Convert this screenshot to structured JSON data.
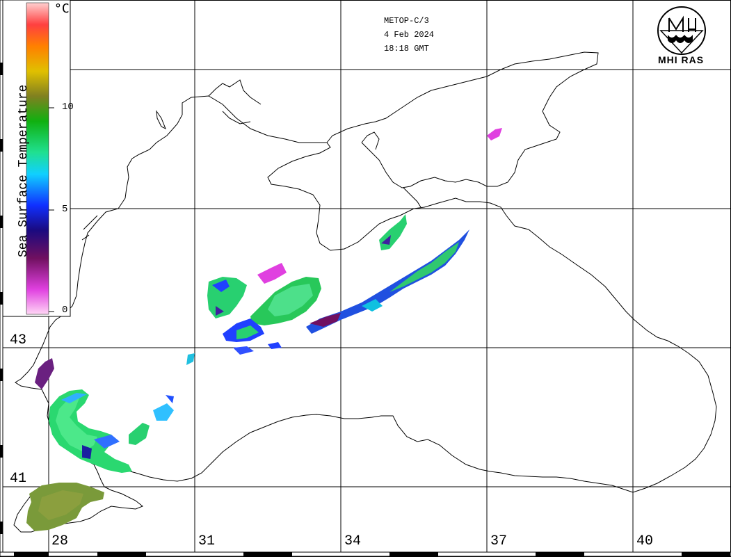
{
  "header": {
    "satellite": "METOP-C/3",
    "date": "4 Feb 2024",
    "time": "18:18 GMT"
  },
  "logo": {
    "text": "MHI RAS",
    "icon": "mhi-ras-logo-icon"
  },
  "scale": {
    "title": "Sea Surface Temperature",
    "unit": "°C",
    "ticks": [
      "10",
      "5",
      "0"
    ],
    "colors": [
      "#ffd6f5",
      "#e040e0",
      "#701060",
      "#1a0a80",
      "#1030ff",
      "#10d0ff",
      "#20e090",
      "#10b010",
      "#808020",
      "#e0c000",
      "#ff8000",
      "#ff4040",
      "#ffd0d0"
    ]
  },
  "grid": {
    "latitudes": [
      "43",
      "41"
    ],
    "longitudes": [
      "28",
      "31",
      "34",
      "37",
      "40"
    ]
  }
}
